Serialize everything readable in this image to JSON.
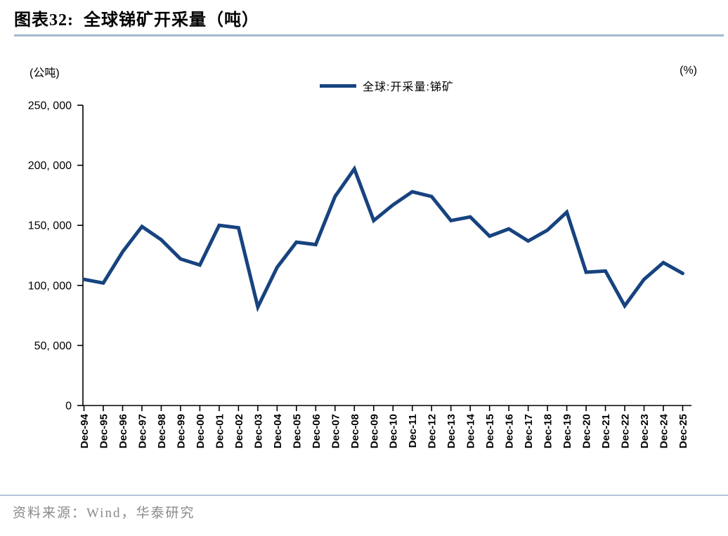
{
  "page": {
    "title": "图表32:  全球锑矿开采量（吨）",
    "source": "资料来源：Wind，华泰研究"
  },
  "colors": {
    "line": "#17437f",
    "axis": "#000000",
    "title_rule": "#a3b9cf",
    "footer_rule": "#b3c7da",
    "source_text": "#8a8a8a"
  },
  "chart_data": {
    "type": "line",
    "title": "全球锑矿开采量（吨）",
    "unit_left": "(公吨)",
    "unit_right": "(%)",
    "legend_label": "全球:开采量:锑矿",
    "legend_position": "top-center",
    "grid": false,
    "categories": [
      "Dec-94",
      "Dec-95",
      "Dec-96",
      "Dec-97",
      "Dec-98",
      "Dec-99",
      "Dec-00",
      "Dec-01",
      "Dec-02",
      "Dec-03",
      "Dec-04",
      "Dec-05",
      "Dec-06",
      "Dec-07",
      "Dec-08",
      "Dec-09",
      "Dec-10",
      "Dec-11",
      "Dec-12",
      "Dec-13",
      "Dec-14",
      "Dec-15",
      "Dec-16",
      "Dec-17",
      "Dec-18",
      "Dec-19",
      "Dec-20",
      "Dec-21",
      "Dec-22",
      "Dec-23",
      "Dec-24",
      "Dec-25"
    ],
    "series": [
      {
        "name": "全球:开采量:锑矿",
        "color": "#17437f",
        "values": [
          105000,
          102000,
          128000,
          149000,
          138000,
          122000,
          117000,
          150000,
          148000,
          82000,
          115000,
          136000,
          134000,
          174000,
          197000,
          154000,
          167000,
          178000,
          174000,
          154000,
          157000,
          141000,
          147000,
          137000,
          146000,
          161000,
          111000,
          112000,
          83000,
          105000,
          119000,
          110000
        ]
      }
    ],
    "ylim": [
      0,
      250000
    ],
    "yticks": [
      0,
      50000,
      100000,
      150000,
      200000,
      250000
    ],
    "ytick_labels": [
      "0",
      "50, 000",
      "100, 000",
      "150, 000",
      "200, 000",
      "250, 000"
    ]
  }
}
